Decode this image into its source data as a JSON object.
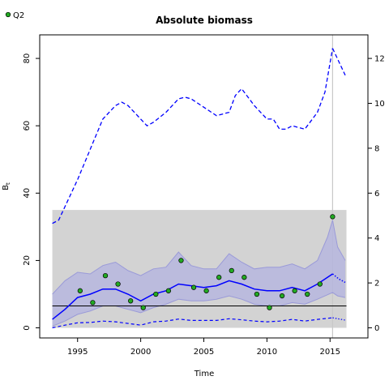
{
  "chart_data": {
    "type": "line",
    "title": "Absolute biomass",
    "xlabel": "Time",
    "ylabel": "B",
    "ylabel_sub": "t",
    "xlim": [
      1992,
      2018
    ],
    "ylim": [
      -3,
      87
    ],
    "x_ticks": [
      1995,
      2000,
      2005,
      2010,
      2015
    ],
    "y_ticks": [
      0,
      20,
      40,
      60,
      80
    ],
    "y2_ticks": [
      0,
      2,
      4,
      6,
      8,
      10,
      12
    ],
    "y2_scale": 6.6667,
    "legend": {
      "position": "top-left",
      "entries": [
        {
          "label": "Q2",
          "marker": "filled-circle",
          "color": "#22aa22"
        }
      ]
    },
    "colors": {
      "estimate": "#0000ff",
      "band": "#b3b3e0",
      "reference_region": "#d3d3d3",
      "reference_line": "#000000",
      "observations": "#22aa22",
      "vline": "#c8c8c8"
    },
    "reference_region": {
      "x": [
        1993,
        2016.3
      ],
      "y": [
        0,
        35
      ]
    },
    "reference_line": {
      "y": 6.5
    },
    "vline": {
      "x": 2015.2
    },
    "estimate": {
      "x": [
        1993,
        1994,
        1995,
        1996,
        1997,
        1998,
        1999,
        2000,
        2001,
        2002,
        2003,
        2004,
        2005,
        2006,
        2007,
        2008,
        2009,
        2010,
        2011,
        2012,
        2013,
        2014,
        2015.2
      ],
      "y": [
        2.5,
        5.5,
        9,
        10,
        11.5,
        11.5,
        10,
        8,
        10,
        11,
        13,
        12.5,
        12,
        12.5,
        14,
        13,
        11.5,
        11,
        11,
        12,
        11,
        13,
        16
      ]
    },
    "estimate_forecast": {
      "x": [
        2015.2,
        2015.7,
        2016.2
      ],
      "y": [
        16,
        14.5,
        13.5
      ]
    },
    "upper_band": {
      "x": [
        1993,
        1994,
        1995,
        1996,
        1997,
        1998,
        1999,
        2000,
        2001,
        2002,
        2003,
        2004,
        2005,
        2006,
        2007,
        2008,
        2009,
        2010,
        2011,
        2012,
        2013,
        2014,
        2014.8,
        2015.2,
        2015.6,
        2016.2
      ],
      "y": [
        10,
        14,
        16.5,
        16,
        18.5,
        19.5,
        17,
        15.5,
        17.5,
        18,
        22.5,
        18.5,
        17.5,
        17.5,
        22,
        19.5,
        17.5,
        18,
        18,
        19,
        17.5,
        20,
        27,
        32,
        24,
        20
      ]
    },
    "lower_band": {
      "x": [
        1993,
        1994,
        1995,
        1996,
        1997,
        1998,
        1999,
        2000,
        2001,
        2002,
        2003,
        2004,
        2005,
        2006,
        2007,
        2008,
        2009,
        2010,
        2011,
        2012,
        2013,
        2014,
        2015.2,
        2015.6,
        2016.2
      ],
      "y": [
        0.5,
        2,
        4,
        5,
        6.5,
        6.5,
        5.5,
        4.5,
        6,
        7,
        8.5,
        8,
        8,
        8.5,
        9.5,
        8.5,
        7,
        6.5,
        6.5,
        7.5,
        7,
        8.5,
        10.5,
        9.5,
        9
      ]
    },
    "catch": {
      "x": [
        1993,
        1994,
        1995,
        1996,
        1997,
        1998,
        1999,
        2000,
        2001,
        2002,
        2003,
        2004,
        2005,
        2006,
        2007,
        2008,
        2009,
        2010,
        2011,
        2012,
        2013,
        2014,
        2015.2
      ],
      "y": [
        0,
        0.8,
        1.5,
        1.6,
        2,
        1.8,
        1.3,
        0.8,
        1.8,
        2,
        2.6,
        2.2,
        2.2,
        2.2,
        2.7,
        2.4,
        2,
        1.8,
        2,
        2.5,
        2,
        2.5,
        3
      ]
    },
    "catch_forecast": {
      "x": [
        2015.2,
        2016.2
      ],
      "y": [
        3,
        2.3
      ]
    },
    "fishing_mortality": {
      "x": [
        1993,
        1993.5,
        1994,
        1995,
        1996,
        1997,
        1998,
        1998.5,
        1999,
        1999.5,
        2000,
        2000.5,
        2001,
        2002,
        2003,
        2003.5,
        2004,
        2005,
        2006,
        2007,
        2007.5,
        2008,
        2009,
        2010,
        2010.5,
        2011,
        2011.5,
        2012,
        2013,
        2014,
        2014.6,
        2015.2
      ],
      "y": [
        31,
        32,
        36,
        44,
        53,
        62,
        66,
        67,
        66,
        64,
        62,
        60,
        61,
        64,
        68,
        68.5,
        68,
        65.5,
        63,
        64,
        69,
        71,
        66,
        62,
        62,
        59,
        59,
        60,
        59,
        64,
        70,
        83
      ]
    },
    "fishing_mortality_forecast": {
      "x": [
        2015.2,
        2016.2
      ],
      "y": [
        83,
        75
      ]
    },
    "observations": {
      "label": "Q2",
      "x": [
        1995.2,
        1996.2,
        1997.2,
        1998.2,
        1999.2,
        2000.2,
        2001.2,
        2002.2,
        2003.2,
        2004.2,
        2005.2,
        2006.2,
        2007.2,
        2008.2,
        2009.2,
        2010.2,
        2011.2,
        2012.2,
        2013.2,
        2014.2,
        2015.2
      ],
      "y": [
        11,
        7.5,
        15.5,
        13,
        8,
        6,
        10,
        11,
        20,
        12,
        11,
        15,
        17,
        15,
        10,
        6,
        9.5,
        11,
        10,
        13,
        33
      ]
    }
  }
}
